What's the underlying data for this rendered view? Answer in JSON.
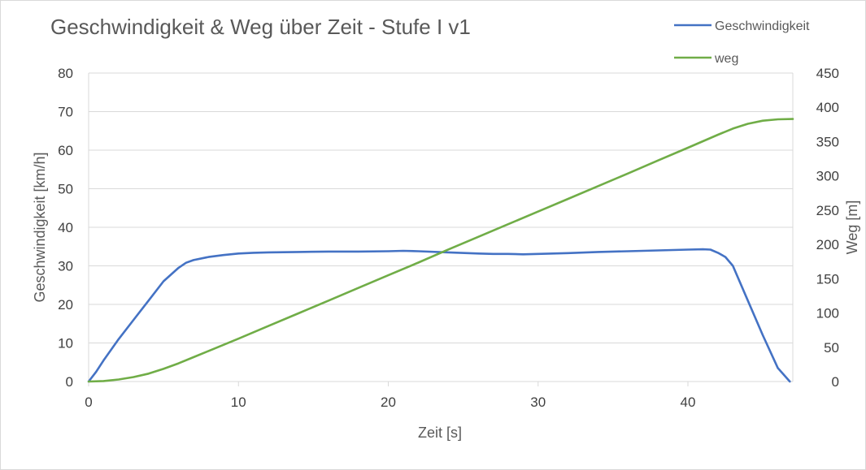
{
  "chart_data": {
    "type": "line",
    "title": "Geschwindigkeit & Weg über Zeit - Stufe I v1",
    "xlabel": "Zeit [s]",
    "ylabel_left": "Geschwindigkeit [km/h]",
    "ylabel_right": "Weg [m]",
    "xlim": [
      0,
      47
    ],
    "ylim_left": [
      0,
      80
    ],
    "ylim_right": [
      0,
      450
    ],
    "x_ticks": [
      "0",
      "10",
      "20",
      "30",
      "40"
    ],
    "y_left_ticks": [
      "0",
      "10",
      "20",
      "30",
      "40",
      "50",
      "60",
      "70",
      "80"
    ],
    "y_right_ticks": [
      "0",
      "50",
      "100",
      "150",
      "200",
      "250",
      "300",
      "350",
      "400",
      "450"
    ],
    "grid": "horizontal",
    "legend_position": "top-right",
    "series": [
      {
        "name": "Geschwindigkeit",
        "axis": "left",
        "color": "#4472c4",
        "x": [
          0,
          0.5,
          1,
          2,
          3,
          4,
          5,
          6,
          6.5,
          7,
          8,
          9,
          10,
          11,
          12,
          14,
          16,
          18,
          20,
          21,
          22,
          24,
          26,
          27,
          28,
          29,
          30,
          32,
          34,
          36,
          38,
          39,
          40,
          41,
          41.5,
          42,
          42.5,
          43,
          44,
          45,
          46,
          46.8
        ],
        "y": [
          0,
          2.5,
          5.5,
          11,
          16,
          21,
          26,
          29.5,
          30.8,
          31.5,
          32.3,
          32.8,
          33.2,
          33.4,
          33.5,
          33.6,
          33.7,
          33.7,
          33.8,
          33.9,
          33.8,
          33.5,
          33.2,
          33.1,
          33.1,
          33.0,
          33.1,
          33.3,
          33.6,
          33.8,
          34.0,
          34.1,
          34.2,
          34.3,
          34.2,
          33.4,
          32.3,
          30.0,
          21.0,
          12.0,
          3.5,
          0
        ]
      },
      {
        "name": "weg",
        "axis": "right",
        "color": "#70ad47",
        "x": [
          0,
          1,
          2,
          3,
          4,
          5,
          6,
          7,
          8,
          10,
          12,
          14,
          16,
          18,
          20,
          22,
          24,
          26,
          28,
          30,
          32,
          34,
          36,
          38,
          40,
          42,
          43,
          44,
          45,
          46,
          47
        ],
        "y": [
          0,
          0.7,
          3,
          6.5,
          11.5,
          18.5,
          26.5,
          35.5,
          44.5,
          62.5,
          81,
          99.5,
          118,
          136.5,
          155,
          173.5,
          192.5,
          211,
          229.5,
          248,
          266.5,
          285,
          303.5,
          322.5,
          341,
          360,
          369,
          376,
          380.5,
          382.5,
          383
        ]
      }
    ]
  }
}
